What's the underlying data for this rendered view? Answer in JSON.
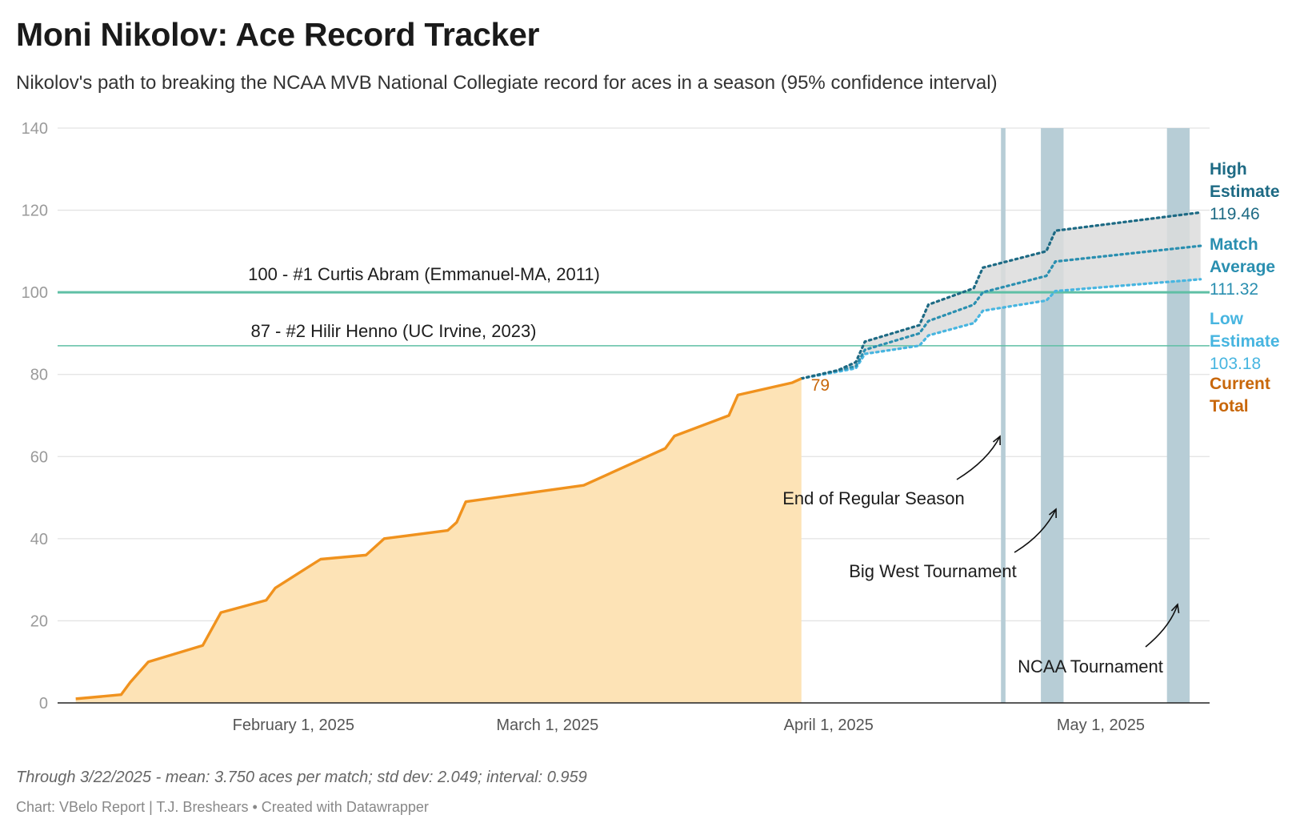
{
  "title": "Moni Nikolov: Ace Record Tracker",
  "subtitle": "Nikolov's path to breaking the NCAA MVB National Collegiate record for aces in a season (95% confidence interval)",
  "notes": "Through 3/22/2025 - mean: 3.750 aces per match; std dev: 2.049; interval: 0.959",
  "credit": "Chart: VBelo Report | T.J. Breshears • Created with Datawrapper",
  "colors": {
    "actual_line": "#f0921e",
    "actual_fill": "#fde3b6",
    "high": "#1d6a84",
    "mid": "#2a8fb0",
    "low": "#47b5e0",
    "band": "#dcdcdc",
    "record": "#5fbfa5",
    "period": "#b7cdd6",
    "current_label": "#c8670a"
  },
  "chart_data": {
    "type": "area",
    "x_type": "date",
    "ylim": [
      0,
      140
    ],
    "yticks": [
      0,
      20,
      40,
      60,
      80,
      100,
      120,
      140
    ],
    "xlim": [
      "2025-01-06",
      "2025-05-13"
    ],
    "xticks": [
      {
        "date": "2025-02-01",
        "label": "February 1, 2025"
      },
      {
        "date": "2025-03-01",
        "label": "March 1, 2025"
      },
      {
        "date": "2025-04-01",
        "label": "April 1, 2025"
      },
      {
        "date": "2025-05-01",
        "label": "May 1, 2025"
      }
    ],
    "grid": true,
    "series": [
      {
        "key": "actual",
        "style": "solid-area",
        "points": [
          [
            "2025-01-08",
            1
          ],
          [
            "2025-01-13",
            2
          ],
          [
            "2025-01-14",
            5
          ],
          [
            "2025-01-16",
            10
          ],
          [
            "2025-01-22",
            14
          ],
          [
            "2025-01-24",
            22
          ],
          [
            "2025-01-29",
            25
          ],
          [
            "2025-01-30",
            28
          ],
          [
            "2025-02-04",
            35
          ],
          [
            "2025-02-09",
            36
          ],
          [
            "2025-02-11",
            40
          ],
          [
            "2025-02-18",
            42
          ],
          [
            "2025-02-19",
            44
          ],
          [
            "2025-02-20",
            49
          ],
          [
            "2025-03-05",
            53
          ],
          [
            "2025-03-14",
            62
          ],
          [
            "2025-03-15",
            65
          ],
          [
            "2025-03-21",
            70
          ],
          [
            "2025-03-22",
            75
          ],
          [
            "2025-03-28",
            78
          ],
          [
            "2025-03-29",
            79
          ]
        ]
      },
      {
        "key": "high",
        "style": "dotted",
        "points": [
          [
            "2025-03-29",
            79
          ],
          [
            "2025-04-02",
            81
          ],
          [
            "2025-04-04",
            83
          ],
          [
            "2025-04-05",
            88
          ],
          [
            "2025-04-11",
            92
          ],
          [
            "2025-04-12",
            97
          ],
          [
            "2025-04-17",
            101
          ],
          [
            "2025-04-18",
            106
          ],
          [
            "2025-04-25",
            110
          ],
          [
            "2025-04-26",
            115
          ],
          [
            "2025-05-12",
            119.46
          ]
        ]
      },
      {
        "key": "mid",
        "style": "dotted",
        "points": [
          [
            "2025-03-29",
            79
          ],
          [
            "2025-04-04",
            82
          ],
          [
            "2025-04-05",
            86
          ],
          [
            "2025-04-11",
            90
          ],
          [
            "2025-04-12",
            93
          ],
          [
            "2025-04-17",
            97
          ],
          [
            "2025-04-18",
            100
          ],
          [
            "2025-04-25",
            104
          ],
          [
            "2025-04-26",
            107.5
          ],
          [
            "2025-05-12",
            111.32
          ]
        ]
      },
      {
        "key": "low",
        "style": "dotted",
        "points": [
          [
            "2025-03-29",
            79
          ],
          [
            "2025-04-04",
            81.5
          ],
          [
            "2025-04-05",
            85
          ],
          [
            "2025-04-11",
            87
          ],
          [
            "2025-04-12",
            89.5
          ],
          [
            "2025-04-17",
            92.5
          ],
          [
            "2025-04-18",
            95.5
          ],
          [
            "2025-04-25",
            98
          ],
          [
            "2025-04-26",
            100.3
          ],
          [
            "2025-05-12",
            103.18
          ]
        ]
      }
    ],
    "reference_lines": [
      {
        "value": 100,
        "label": "100 - #1 Curtis Abram (Emmanuel-MA, 2011)",
        "weight": "thick"
      },
      {
        "value": 87,
        "label": "87 - #2 Hilir Henno (UC Irvine, 2023)",
        "weight": "thin"
      }
    ],
    "periods": [
      {
        "start": "2025-04-20",
        "end": "2025-04-20.5",
        "label": "End of Regular Season"
      },
      {
        "start": "2025-04-24.4",
        "end": "2025-04-26.9",
        "label": "Big West Tournament"
      },
      {
        "start": "2025-05-08.3",
        "end": "2025-05-10.8",
        "label": "NCAA Tournament"
      }
    ],
    "current_value_label": "79",
    "end_labels": [
      {
        "key": "high",
        "name": "High Estimate",
        "value": "119.46"
      },
      {
        "key": "mid",
        "name": "Match Average",
        "value": "111.32"
      },
      {
        "key": "low",
        "name": "Low Estimate",
        "value": "103.18"
      },
      {
        "key": "current",
        "name": "Current Total",
        "value": ""
      }
    ]
  }
}
